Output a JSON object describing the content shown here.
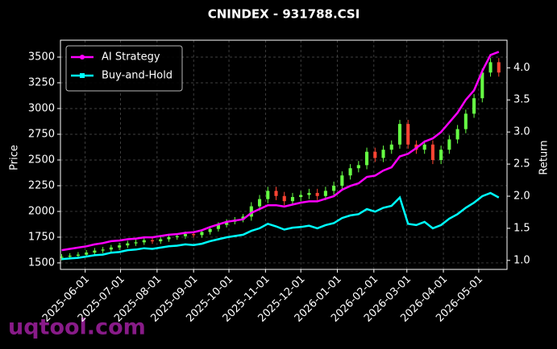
{
  "chart_data": {
    "type": "candlestick",
    "title": "CNINDEX - 931788.CSI",
    "ylabel": "Price",
    "y2label": "Return",
    "watermark": "uqtool.com",
    "grid": true,
    "legend": "upper left",
    "up_color": "#66ff44",
    "down_color": "#ff4433",
    "x": [
      "2025-05-12",
      "2025-05-19",
      "2025-05-26",
      "2025-06-02",
      "2025-06-09",
      "2025-06-16",
      "2025-06-23",
      "2025-06-30",
      "2025-07-07",
      "2025-07-14",
      "2025-07-21",
      "2025-07-28",
      "2025-08-04",
      "2025-08-11",
      "2025-08-18",
      "2025-08-25",
      "2025-09-01",
      "2025-09-08",
      "2025-09-15",
      "2025-09-22",
      "2025-09-29",
      "2025-10-06",
      "2025-10-13",
      "2025-10-20",
      "2025-10-27",
      "2025-11-03",
      "2025-11-10",
      "2025-11-17",
      "2025-11-24",
      "2025-12-01",
      "2025-12-08",
      "2025-12-15",
      "2025-12-22",
      "2025-12-29",
      "2026-01-05",
      "2026-01-12",
      "2026-01-19",
      "2026-01-26",
      "2026-02-02",
      "2026-02-09",
      "2026-02-16",
      "2026-02-23",
      "2026-03-02",
      "2026-03-09",
      "2026-03-16",
      "2026-03-23",
      "2026-03-30",
      "2026-04-06",
      "2026-04-13",
      "2026-04-20",
      "2026-04-27",
      "2026-05-04",
      "2026-05-11",
      "2026-05-18"
    ],
    "open": [
      1550,
      1560,
      1570,
      1580,
      1600,
      1620,
      1630,
      1650,
      1670,
      1690,
      1700,
      1720,
      1710,
      1730,
      1750,
      1760,
      1780,
      1770,
      1800,
      1830,
      1870,
      1900,
      1920,
      1950,
      2050,
      2120,
      2200,
      2150,
      2100,
      2140,
      2160,
      2180,
      2150,
      2200,
      2250,
      2350,
      2420,
      2450,
      2580,
      2520,
      2600,
      2650,
      2850,
      2650,
      2600,
      2650,
      2500,
      2600,
      2700,
      2800,
      2950,
      3100,
      3350,
      3450
    ],
    "high": [
      1585,
      1595,
      1605,
      1625,
      1645,
      1655,
      1675,
      1695,
      1715,
      1725,
      1745,
      1745,
      1755,
      1775,
      1785,
      1805,
      1805,
      1825,
      1855,
      1895,
      1925,
      1945,
      1975,
      2090,
      2160,
      2240,
      2240,
      2190,
      2180,
      2200,
      2220,
      2220,
      2240,
      2290,
      2390,
      2460,
      2490,
      2620,
      2620,
      2640,
      2690,
      2890,
      2890,
      2690,
      2690,
      2690,
      2640,
      2740,
      2840,
      2990,
      3140,
      3390,
      3490,
      3490
    ],
    "low": [
      1525,
      1535,
      1545,
      1555,
      1575,
      1595,
      1605,
      1625,
      1645,
      1665,
      1675,
      1685,
      1685,
      1705,
      1725,
      1735,
      1745,
      1745,
      1775,
      1805,
      1845,
      1875,
      1895,
      1910,
      2010,
      2080,
      2110,
      2060,
      2060,
      2100,
      2120,
      2110,
      2110,
      2160,
      2210,
      2310,
      2380,
      2410,
      2480,
      2480,
      2560,
      2610,
      2610,
      2560,
      2560,
      2460,
      2460,
      2560,
      2660,
      2760,
      2910,
      3060,
      3310,
      3310
    ],
    "close": [
      1560,
      1570,
      1580,
      1600,
      1620,
      1630,
      1650,
      1670,
      1690,
      1700,
      1720,
      1710,
      1730,
      1750,
      1760,
      1780,
      1770,
      1800,
      1830,
      1870,
      1900,
      1920,
      1950,
      2050,
      2120,
      2200,
      2150,
      2100,
      2140,
      2160,
      2180,
      2150,
      2200,
      2250,
      2350,
      2420,
      2450,
      2580,
      2520,
      2600,
      2650,
      2850,
      2650,
      2600,
      2650,
      2500,
      2600,
      2700,
      2800,
      2950,
      3100,
      3350,
      3450,
      3350
    ],
    "series": [
      {
        "name": "AI Strategy",
        "color": "#ff00ff",
        "axis": "y2",
        "values": [
          1.16,
          1.18,
          1.2,
          1.22,
          1.25,
          1.27,
          1.3,
          1.31,
          1.33,
          1.34,
          1.36,
          1.36,
          1.38,
          1.4,
          1.41,
          1.43,
          1.44,
          1.47,
          1.52,
          1.56,
          1.6,
          1.62,
          1.64,
          1.74,
          1.8,
          1.86,
          1.86,
          1.84,
          1.87,
          1.9,
          1.92,
          1.92,
          1.96,
          2.0,
          2.1,
          2.16,
          2.2,
          2.3,
          2.32,
          2.4,
          2.45,
          2.62,
          2.66,
          2.75,
          2.85,
          2.9,
          3.0,
          3.15,
          3.3,
          3.5,
          3.65,
          3.95,
          4.2,
          4.25
        ]
      },
      {
        "name": "Buy-and-Hold",
        "color": "#00ffff",
        "axis": "y2",
        "values": [
          1.02,
          1.03,
          1.04,
          1.06,
          1.08,
          1.09,
          1.12,
          1.13,
          1.16,
          1.17,
          1.19,
          1.18,
          1.2,
          1.22,
          1.23,
          1.25,
          1.24,
          1.26,
          1.3,
          1.33,
          1.36,
          1.38,
          1.4,
          1.46,
          1.5,
          1.57,
          1.53,
          1.48,
          1.51,
          1.52,
          1.54,
          1.5,
          1.55,
          1.58,
          1.66,
          1.7,
          1.72,
          1.8,
          1.76,
          1.82,
          1.85,
          1.98,
          1.57,
          1.55,
          1.6,
          1.5,
          1.55,
          1.65,
          1.72,
          1.82,
          1.9,
          2.0,
          2.05,
          1.98
        ]
      }
    ],
    "xlim": [
      "2025-05-11",
      "2026-05-25"
    ],
    "xticks": [
      "2025-06-01",
      "2025-07-01",
      "2025-08-01",
      "2025-09-01",
      "2025-10-01",
      "2025-11-01",
      "2025-12-01",
      "2026-01-01",
      "2026-02-01",
      "2026-03-01",
      "2026-04-01",
      "2026-05-01"
    ],
    "ylim": [
      1437,
      3664
    ],
    "yticks": [
      1500,
      1750,
      2000,
      2250,
      2500,
      2750,
      3000,
      3250,
      3500
    ],
    "y2lim": [
      0.86,
      4.43
    ],
    "y2ticks": [
      {
        "value": 1.0,
        "label": "1.0"
      },
      {
        "value": 1.5,
        "label": "1.5"
      },
      {
        "value": 2.0,
        "label": "2.0"
      },
      {
        "value": 2.5,
        "label": "2.5"
      },
      {
        "value": 3.0,
        "label": "3.0"
      },
      {
        "value": 3.5,
        "label": "3.5"
      },
      {
        "value": 4.0,
        "label": "4.0"
      }
    ]
  }
}
